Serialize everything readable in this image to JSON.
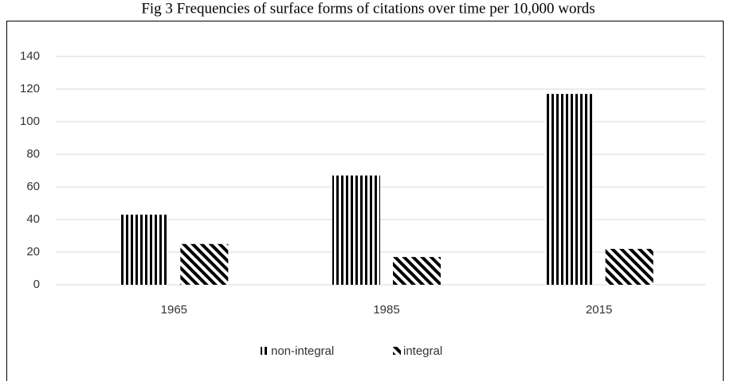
{
  "chart_data": {
    "type": "bar",
    "title": "Fig 3 Frequencies of surface forms of citations over time per 10,000 words",
    "categories": [
      "1965",
      "1985",
      "2015"
    ],
    "series": [
      {
        "name": "non-integral",
        "color": "#000000",
        "pattern": "vertical",
        "values": [
          43,
          67,
          117
        ]
      },
      {
        "name": "integral",
        "color": "#000000",
        "pattern": "diagonal",
        "values": [
          25,
          17,
          22
        ]
      }
    ],
    "ylim": [
      0,
      140
    ],
    "yticks": [
      0,
      20,
      40,
      60,
      80,
      100,
      120,
      140
    ],
    "grid": true,
    "legend": "bottom"
  }
}
